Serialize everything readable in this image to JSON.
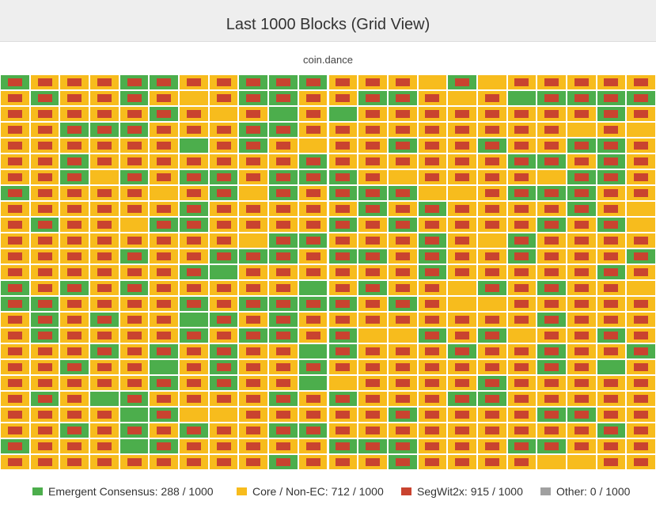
{
  "colors": {
    "emergent": "#4cae4c",
    "core": "#f7bc1d",
    "segwit2x": "#c9432f",
    "other": "#a0a0a0"
  },
  "chart_data": {
    "type": "heatmap",
    "title": "Last 1000 Blocks (Grid View)",
    "subtitle": "coin.dance",
    "rows": 25,
    "columns": 22,
    "series": [
      {
        "name": "Emergent Consensus",
        "label": "Emergent Consensus: 288 / 1000",
        "count": 288,
        "total": 1000
      },
      {
        "name": "Core / Non-EC",
        "label": "Core / Non-EC: 712 / 1000",
        "count": 712,
        "total": 1000
      },
      {
        "name": "SegWit2x",
        "label": "SegWit2x: 915 / 1000",
        "count": 915,
        "total": 1000
      },
      {
        "name": "Other",
        "label": "Other: 0 / 1000",
        "count": 0,
        "total": 1000
      }
    ]
  }
}
